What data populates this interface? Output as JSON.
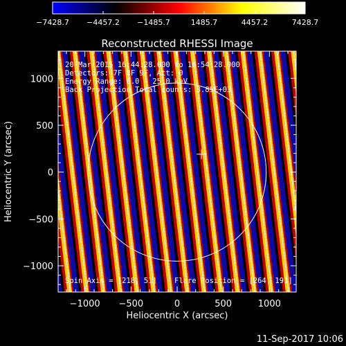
{
  "chart_data": {
    "type": "heatmap",
    "title": "Reconstructed RHESSI Image",
    "xlabel": "Heliocentric X (arcsec)",
    "ylabel": "Heliocentric Y (arcsec)",
    "xlim": [
      -1290,
      1290
    ],
    "ylim": [
      -1280,
      1290
    ],
    "xticks": [
      -1000,
      -500,
      0,
      500,
      1000
    ],
    "xtick_labels": [
      "−1000",
      "−500",
      "0",
      "500",
      "1000"
    ],
    "yticks": [
      -1000,
      -500,
      0,
      500,
      1000
    ],
    "ytick_labels": [
      "−1000",
      "−500",
      "0",
      "500",
      "1000"
    ],
    "colorbar": {
      "range": [
        -7428.7,
        7428.7
      ],
      "ticks": [
        -7428.7,
        -4457.2,
        -1485.7,
        1485.7,
        4457.2,
        7428.7
      ],
      "tick_labels": [
        "−7428.7",
        "−4457.2",
        "−1485.7",
        "1485.7",
        "4457.2",
        "7428.7"
      ],
      "colormap": [
        "#0000ff",
        "#000000",
        "#ff0000",
        "#ffff00",
        "#ffffff"
      ]
    },
    "pattern": {
      "kind": "stripes",
      "period_arcsec": 182,
      "tilt_dx_per_dy": -0.12
    },
    "solar_limb": {
      "center": [
        0,
        0
      ],
      "radius_arcsec": 965
    },
    "flare_marker": {
      "x": 264,
      "y": 191
    },
    "annotations": {
      "time": "20-Mar-2015 16:44:28.000 to 16:54:28.000",
      "detectors": "Detectors: 7F 8F 9F, Att: 0",
      "energy": "Energy Range: 6.0 - 25.0 keV",
      "method": "Back Projection    Total counts: 3.85E+03",
      "spin_axis": "Spin Axis = [218, 51]",
      "flare_position": "Flare Position = [264, 191]"
    }
  },
  "footer": {
    "timestamp": "11-Sep-2017 10:06"
  }
}
